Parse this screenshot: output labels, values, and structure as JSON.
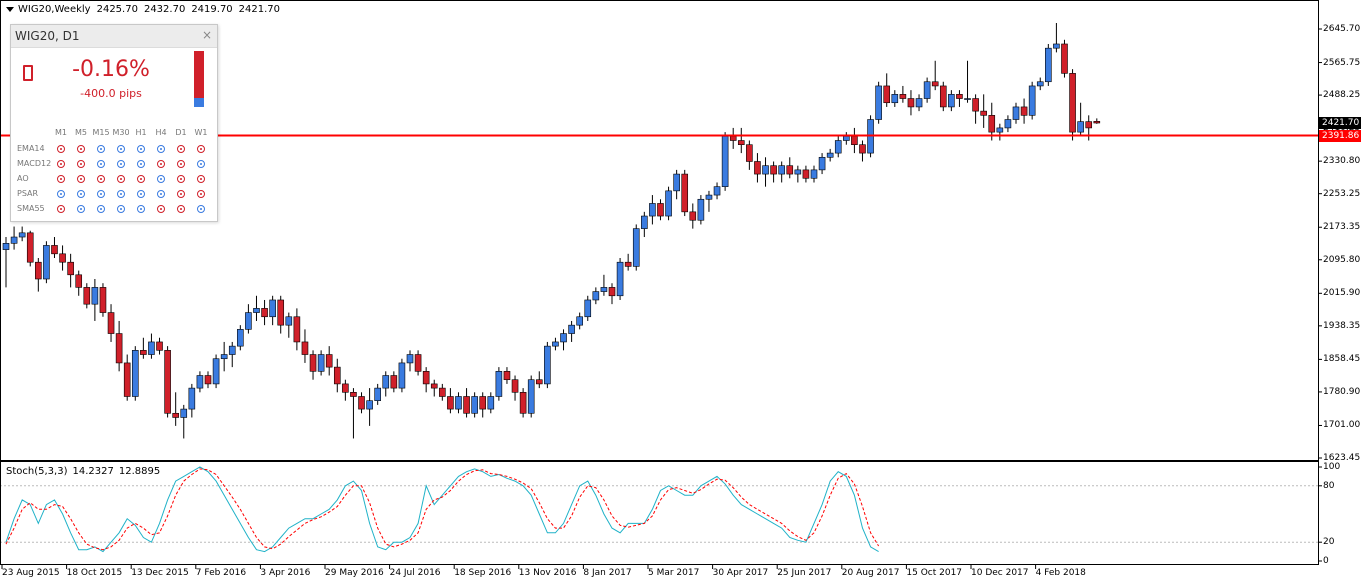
{
  "header": {
    "symbol": "WIG20,Weekly",
    "open": "2425.70",
    "high": "2432.70",
    "low": "2419.70",
    "close": "2421.70"
  },
  "price_axis": {
    "labels": [
      "2645.70",
      "2565.75",
      "2488.25",
      "2410.25",
      "2330.80",
      "2253.25",
      "2173.35",
      "2095.80",
      "2015.90",
      "1938.35",
      "1858.45",
      "1780.90",
      "1701.00",
      "1623.45"
    ]
  },
  "current_price_tag": "2421.70",
  "level_line_tag": "2391.86",
  "time_axis": {
    "labels": [
      "23 Aug 2015",
      "18 Oct 2015",
      "13 Dec 2015",
      "7 Feb 2016",
      "3 Apr 2016",
      "29 May 2016",
      "24 Jul 2016",
      "18 Sep 2016",
      "13 Nov 2016",
      "8 Jan 2017",
      "5 Mar 2017",
      "30 Apr 2017",
      "25 Jun 2017",
      "20 Aug 2017",
      "15 Oct 2017",
      "10 Dec 2017",
      "4 Feb 2018"
    ]
  },
  "stoch": {
    "name": "Stoch(5,3,3)",
    "main": "14.2327",
    "signal": "12.8895",
    "axis_labels": [
      "100",
      "80",
      "20",
      "0"
    ]
  },
  "colors": {
    "bull": "#3a7be0",
    "bear": "#d0202a",
    "level_line": "#ff0000",
    "stoch_main": "#20b2c8",
    "stoch_signal": "#ff0000"
  },
  "widget": {
    "title": "WIG20, D1",
    "close_icon": "×",
    "trend_icon": "trend-down-icon",
    "percent": "-0.16%",
    "pips": "-400.0 pips",
    "gauge_blue_fraction": 0.16,
    "timeframes": [
      "M1",
      "M5",
      "M15",
      "M30",
      "H1",
      "H4",
      "D1",
      "W1"
    ],
    "indicators": [
      {
        "name": "EMA14",
        "signals": [
          "red",
          "red",
          "blue",
          "blue",
          "blue",
          "blue",
          "red",
          "red"
        ]
      },
      {
        "name": "MACD12",
        "signals": [
          "red",
          "red",
          "blue",
          "blue",
          "blue",
          "red",
          "red",
          "blue"
        ]
      },
      {
        "name": "AO",
        "signals": [
          "red",
          "red",
          "red",
          "red",
          "red",
          "blue",
          "red",
          "red"
        ]
      },
      {
        "name": "PSAR",
        "signals": [
          "blue",
          "blue",
          "blue",
          "blue",
          "blue",
          "blue",
          "red",
          "red"
        ]
      },
      {
        "name": "SMA55",
        "signals": [
          "red",
          "blue",
          "blue",
          "blue",
          "blue",
          "red",
          "red",
          "blue"
        ]
      }
    ]
  },
  "chart_data": {
    "type": "candlestick",
    "title": "WIG20,Weekly",
    "ylim": [
      1623.45,
      2660
    ],
    "horizontal_level": 2391.86,
    "candles": [
      [
        2120,
        2150,
        2030,
        2135
      ],
      [
        2135,
        2175,
        2120,
        2150
      ],
      [
        2150,
        2175,
        2140,
        2160
      ],
      [
        2160,
        2165,
        2080,
        2090
      ],
      [
        2090,
        2100,
        2020,
        2050
      ],
      [
        2050,
        2140,
        2040,
        2130
      ],
      [
        2130,
        2150,
        2100,
        2110
      ],
      [
        2110,
        2130,
        2070,
        2090
      ],
      [
        2090,
        2110,
        2030,
        2060
      ],
      [
        2060,
        2070,
        2010,
        2030
      ],
      [
        2030,
        2040,
        1980,
        1990
      ],
      [
        1990,
        2050,
        1950,
        2030
      ],
      [
        2030,
        2040,
        1960,
        1970
      ],
      [
        1970,
        1990,
        1900,
        1920
      ],
      [
        1920,
        1950,
        1830,
        1850
      ],
      [
        1850,
        1870,
        1760,
        1770
      ],
      [
        1770,
        1890,
        1760,
        1880
      ],
      [
        1880,
        1910,
        1860,
        1870
      ],
      [
        1870,
        1920,
        1860,
        1900
      ],
      [
        1900,
        1910,
        1870,
        1880
      ],
      [
        1880,
        1890,
        1720,
        1730
      ],
      [
        1730,
        1780,
        1700,
        1720
      ],
      [
        1720,
        1750,
        1670,
        1740
      ],
      [
        1740,
        1800,
        1720,
        1790
      ],
      [
        1790,
        1830,
        1780,
        1820
      ],
      [
        1820,
        1830,
        1790,
        1800
      ],
      [
        1800,
        1870,
        1790,
        1860
      ],
      [
        1860,
        1900,
        1830,
        1870
      ],
      [
        1870,
        1900,
        1840,
        1890
      ],
      [
        1890,
        1940,
        1880,
        1930
      ],
      [
        1930,
        1990,
        1920,
        1970
      ],
      [
        1970,
        2010,
        1950,
        1980
      ],
      [
        1980,
        2000,
        1940,
        1960
      ],
      [
        1960,
        2010,
        1940,
        2000
      ],
      [
        2000,
        2010,
        1920,
        1940
      ],
      [
        1940,
        1970,
        1910,
        1960
      ],
      [
        1960,
        1980,
        1880,
        1900
      ],
      [
        1900,
        1930,
        1850,
        1870
      ],
      [
        1870,
        1880,
        1810,
        1830
      ],
      [
        1830,
        1880,
        1820,
        1870
      ],
      [
        1870,
        1890,
        1820,
        1840
      ],
      [
        1840,
        1860,
        1780,
        1800
      ],
      [
        1800,
        1810,
        1760,
        1780
      ],
      [
        1780,
        1790,
        1670,
        1770
      ],
      [
        1770,
        1780,
        1730,
        1740
      ],
      [
        1740,
        1790,
        1700,
        1760
      ],
      [
        1760,
        1800,
        1750,
        1790
      ],
      [
        1790,
        1830,
        1770,
        1820
      ],
      [
        1820,
        1830,
        1780,
        1790
      ],
      [
        1790,
        1860,
        1780,
        1850
      ],
      [
        1850,
        1880,
        1830,
        1870
      ],
      [
        1870,
        1880,
        1820,
        1830
      ],
      [
        1830,
        1840,
        1780,
        1800
      ],
      [
        1800,
        1810,
        1770,
        1790
      ],
      [
        1790,
        1800,
        1760,
        1770
      ],
      [
        1770,
        1790,
        1730,
        1740
      ],
      [
        1740,
        1780,
        1730,
        1770
      ],
      [
        1770,
        1790,
        1720,
        1730
      ],
      [
        1730,
        1780,
        1720,
        1770
      ],
      [
        1770,
        1780,
        1720,
        1740
      ],
      [
        1740,
        1780,
        1730,
        1770
      ],
      [
        1770,
        1840,
        1760,
        1830
      ],
      [
        1830,
        1840,
        1800,
        1810
      ],
      [
        1810,
        1820,
        1760,
        1780
      ],
      [
        1780,
        1790,
        1720,
        1730
      ],
      [
        1730,
        1820,
        1720,
        1810
      ],
      [
        1810,
        1830,
        1790,
        1800
      ],
      [
        1800,
        1900,
        1790,
        1890
      ],
      [
        1890,
        1910,
        1880,
        1900
      ],
      [
        1900,
        1930,
        1880,
        1920
      ],
      [
        1920,
        1950,
        1900,
        1940
      ],
      [
        1940,
        1970,
        1930,
        1960
      ],
      [
        1960,
        2010,
        1950,
        2000
      ],
      [
        2000,
        2030,
        1990,
        2020
      ],
      [
        2020,
        2060,
        2010,
        2030
      ],
      [
        2030,
        2040,
        1990,
        2010
      ],
      [
        2010,
        2100,
        2000,
        2090
      ],
      [
        2090,
        2110,
        2070,
        2080
      ],
      [
        2080,
        2180,
        2070,
        2170
      ],
      [
        2170,
        2210,
        2150,
        2200
      ],
      [
        2200,
        2250,
        2180,
        2230
      ],
      [
        2230,
        2240,
        2190,
        2200
      ],
      [
        2200,
        2270,
        2190,
        2260
      ],
      [
        2260,
        2310,
        2240,
        2300
      ],
      [
        2300,
        2310,
        2200,
        2210
      ],
      [
        2210,
        2230,
        2170,
        2190
      ],
      [
        2190,
        2250,
        2180,
        2240
      ],
      [
        2240,
        2260,
        2210,
        2250
      ],
      [
        2250,
        2280,
        2240,
        2270
      ],
      [
        2270,
        2400,
        2260,
        2390
      ],
      [
        2390,
        2410,
        2360,
        2380
      ],
      [
        2380,
        2410,
        2350,
        2370
      ],
      [
        2370,
        2380,
        2310,
        2330
      ],
      [
        2330,
        2350,
        2280,
        2300
      ],
      [
        2300,
        2340,
        2270,
        2320
      ],
      [
        2320,
        2330,
        2280,
        2300
      ],
      [
        2300,
        2330,
        2280,
        2320
      ],
      [
        2320,
        2340,
        2290,
        2300
      ],
      [
        2300,
        2320,
        2280,
        2310
      ],
      [
        2310,
        2320,
        2280,
        2290
      ],
      [
        2290,
        2320,
        2280,
        2310
      ],
      [
        2310,
        2350,
        2300,
        2340
      ],
      [
        2340,
        2360,
        2330,
        2350
      ],
      [
        2350,
        2390,
        2340,
        2380
      ],
      [
        2380,
        2400,
        2370,
        2390
      ],
      [
        2390,
        2410,
        2350,
        2370
      ],
      [
        2370,
        2380,
        2330,
        2350
      ],
      [
        2350,
        2440,
        2340,
        2430
      ],
      [
        2430,
        2520,
        2420,
        2510
      ],
      [
        2510,
        2540,
        2460,
        2470
      ],
      [
        2470,
        2500,
        2460,
        2490
      ],
      [
        2490,
        2510,
        2470,
        2480
      ],
      [
        2480,
        2500,
        2440,
        2460
      ],
      [
        2460,
        2490,
        2450,
        2480
      ],
      [
        2480,
        2530,
        2470,
        2520
      ],
      [
        2520,
        2570,
        2500,
        2510
      ],
      [
        2510,
        2520,
        2450,
        2460
      ],
      [
        2460,
        2500,
        2450,
        2490
      ],
      [
        2490,
        2500,
        2460,
        2480
      ],
      [
        2480,
        2570,
        2470,
        2480
      ],
      [
        2480,
        2490,
        2420,
        2450
      ],
      [
        2450,
        2490,
        2410,
        2440
      ],
      [
        2440,
        2470,
        2380,
        2400
      ],
      [
        2400,
        2420,
        2380,
        2410
      ],
      [
        2410,
        2440,
        2400,
        2430
      ],
      [
        2430,
        2470,
        2420,
        2460
      ],
      [
        2460,
        2480,
        2420,
        2440
      ],
      [
        2440,
        2520,
        2430,
        2510
      ],
      [
        2510,
        2530,
        2500,
        2520
      ],
      [
        2520,
        2610,
        2510,
        2600
      ],
      [
        2600,
        2660,
        2590,
        2610
      ],
      [
        2610,
        2620,
        2530,
        2540
      ],
      [
        2540,
        2550,
        2380,
        2400
      ],
      [
        2400,
        2470,
        2390,
        2425
      ],
      [
        2425,
        2440,
        2380,
        2410
      ],
      [
        2425.7,
        2432.7,
        2419.7,
        2421.7
      ]
    ],
    "stoch_main": [
      20,
      45,
      65,
      60,
      40,
      60,
      65,
      50,
      30,
      12,
      12,
      15,
      10,
      20,
      30,
      45,
      38,
      25,
      20,
      40,
      65,
      85,
      90,
      95,
      100,
      95,
      85,
      70,
      55,
      40,
      25,
      12,
      10,
      15,
      25,
      35,
      40,
      45,
      45,
      50,
      55,
      65,
      80,
      85,
      75,
      40,
      15,
      12,
      20,
      20,
      25,
      40,
      80,
      60,
      70,
      80,
      90,
      95,
      98,
      95,
      90,
      92,
      88,
      85,
      80,
      70,
      50,
      30,
      30,
      40,
      60,
      80,
      85,
      70,
      50,
      35,
      30,
      40,
      40,
      40,
      55,
      75,
      80,
      75,
      70,
      70,
      80,
      85,
      90,
      82,
      70,
      60,
      55,
      50,
      45,
      40,
      35,
      25,
      22,
      20,
      40,
      60,
      85,
      95,
      90,
      70,
      35,
      15,
      10
    ],
    "stoch_signal": [
      18,
      35,
      55,
      62,
      55,
      55,
      60,
      58,
      45,
      30,
      18,
      14,
      12,
      15,
      22,
      35,
      40,
      35,
      28,
      30,
      48,
      70,
      85,
      92,
      98,
      97,
      92,
      80,
      68,
      55,
      40,
      25,
      15,
      13,
      18,
      26,
      33,
      40,
      44,
      47,
      52,
      58,
      70,
      80,
      80,
      62,
      35,
      18,
      15,
      18,
      22,
      30,
      55,
      65,
      68,
      75,
      85,
      92,
      96,
      97,
      93,
      92,
      90,
      87,
      83,
      77,
      62,
      45,
      35,
      35,
      48,
      68,
      80,
      78,
      65,
      48,
      38,
      36,
      38,
      40,
      48,
      65,
      76,
      78,
      75,
      72,
      76,
      82,
      87,
      86,
      78,
      68,
      60,
      55,
      50,
      45,
      40,
      32,
      26,
      22,
      30,
      48,
      70,
      88,
      93,
      82,
      58,
      30,
      16
    ]
  }
}
